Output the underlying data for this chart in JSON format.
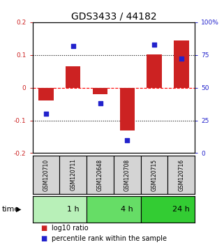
{
  "title": "GDS3433 / 44182",
  "samples": [
    "GSM120710",
    "GSM120711",
    "GSM120648",
    "GSM120708",
    "GSM120715",
    "GSM120716"
  ],
  "log10_ratio": [
    -0.04,
    0.065,
    -0.02,
    -0.13,
    0.102,
    0.145
  ],
  "percentile_rank": [
    30,
    82,
    38,
    10,
    83,
    72
  ],
  "time_groups": [
    {
      "label": "1 h",
      "start": 0,
      "end": 2,
      "color": "#b8f0b8"
    },
    {
      "label": "4 h",
      "start": 2,
      "end": 4,
      "color": "#66dd66"
    },
    {
      "label": "24 h",
      "start": 4,
      "end": 6,
      "color": "#33cc33"
    }
  ],
  "ylim_left": [
    -0.2,
    0.2
  ],
  "ylim_right": [
    0,
    100
  ],
  "bar_color": "#cc2222",
  "dot_color": "#2222cc",
  "bar_width": 0.55,
  "dot_size": 18,
  "title_fontsize": 10,
  "tick_fontsize": 6.5,
  "label_fontsize": 8,
  "legend_fontsize": 7,
  "yticks_left": [
    -0.2,
    -0.1,
    0.0,
    0.1,
    0.2
  ],
  "ytick_labels_left": [
    "-0.2",
    "-0.1",
    "0",
    "0.1",
    "0.2"
  ],
  "yticks_right": [
    0,
    25,
    50,
    75,
    100
  ],
  "ytick_labels_right": [
    "0",
    "25",
    "50",
    "75",
    "100%"
  ],
  "hlines": [
    0.1,
    0.0,
    -0.1
  ],
  "hline_styles": [
    ":",
    "--",
    ":"
  ],
  "hline_colors": [
    "black",
    "red",
    "black"
  ],
  "sample_box_color": "#d4d4d4"
}
